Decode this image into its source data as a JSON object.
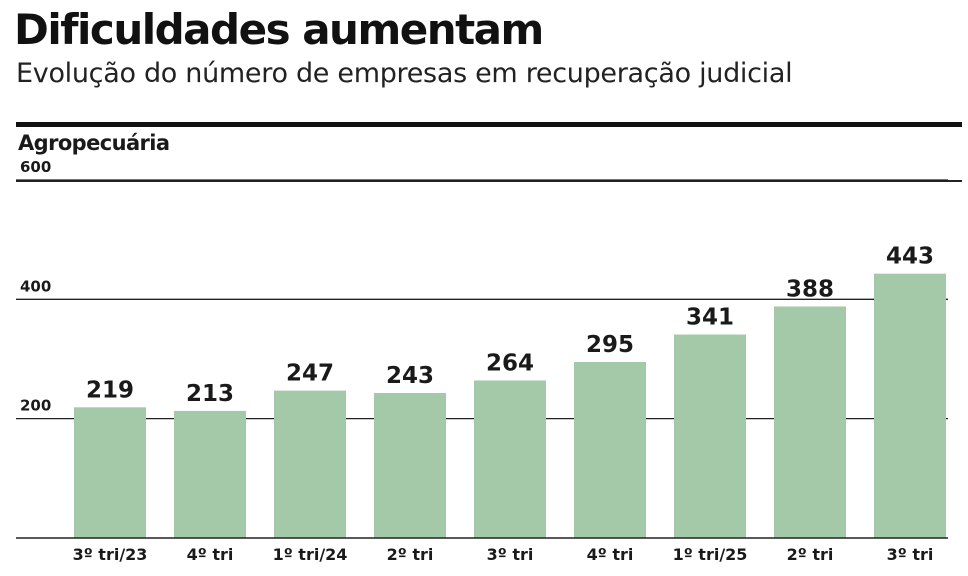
{
  "header": {
    "title": "Dificuldades aumentam",
    "subtitle": "Evolução do número de empresas em recuperação judicial",
    "section": "Agropecuária"
  },
  "colors": {
    "bar": "#a3c9a8",
    "grid": "#222222",
    "text": "#1a1a1a"
  },
  "chart_data": {
    "type": "bar",
    "title": "Dificuldades aumentam",
    "subtitle": "Evolução do número de empresas em recuperação judicial",
    "categories": [
      "3º tri/23",
      "4º tri",
      "1º tri/24",
      "2º tri",
      "3º tri",
      "4º tri",
      "1º tri/25",
      "2º tri",
      "3º tri"
    ],
    "series": [
      {
        "name": "Agropecuária",
        "values": [
          219,
          213,
          247,
          243,
          264,
          295,
          341,
          388,
          443
        ]
      }
    ],
    "yticks": [
      200,
      400,
      600
    ],
    "ylim": [
      0,
      600
    ],
    "grid": true,
    "data_labels": true,
    "xlabel": "",
    "ylabel": ""
  }
}
